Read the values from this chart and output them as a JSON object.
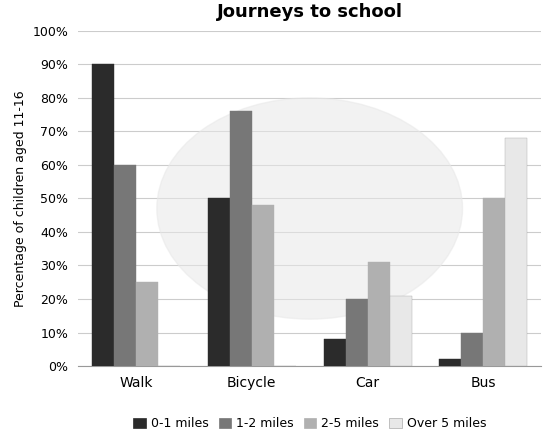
{
  "title": "Journeys to school",
  "ylabel": "Percentage of children aged 11-16",
  "categories": [
    "Walk",
    "Bicycle",
    "Car",
    "Bus"
  ],
  "series": {
    "0-1 miles": [
      90,
      50,
      8,
      2
    ],
    "1-2 miles": [
      60,
      76,
      20,
      10
    ],
    "2-5 miles": [
      25,
      48,
      31,
      50
    ],
    "Over 5 miles": [
      0,
      0,
      21,
      68
    ]
  },
  "colors": {
    "0-1 miles": "#2b2b2b",
    "1-2 miles": "#777777",
    "2-5 miles": "#b0b0b0",
    "Over 5 miles": "#e8e8e8"
  },
  "edgecolors": {
    "0-1 miles": "#2b2b2b",
    "1-2 miles": "#777777",
    "2-5 miles": "#b0b0b0",
    "Over 5 miles": "#aaaaaa"
  },
  "ylim": [
    0,
    100
  ],
  "yticks": [
    0,
    10,
    20,
    30,
    40,
    50,
    60,
    70,
    80,
    90,
    100
  ],
  "ytick_labels": [
    "0%",
    "10%",
    "20%",
    "30%",
    "40%",
    "50%",
    "60%",
    "70%",
    "80%",
    "90%",
    "100%"
  ],
  "bar_width": 0.19,
  "background_color": "#ffffff",
  "watermark_color": "#e8e8e8",
  "grid_color": "#cccccc",
  "title_fontsize": 13,
  "axis_fontsize": 9,
  "legend_fontsize": 9
}
